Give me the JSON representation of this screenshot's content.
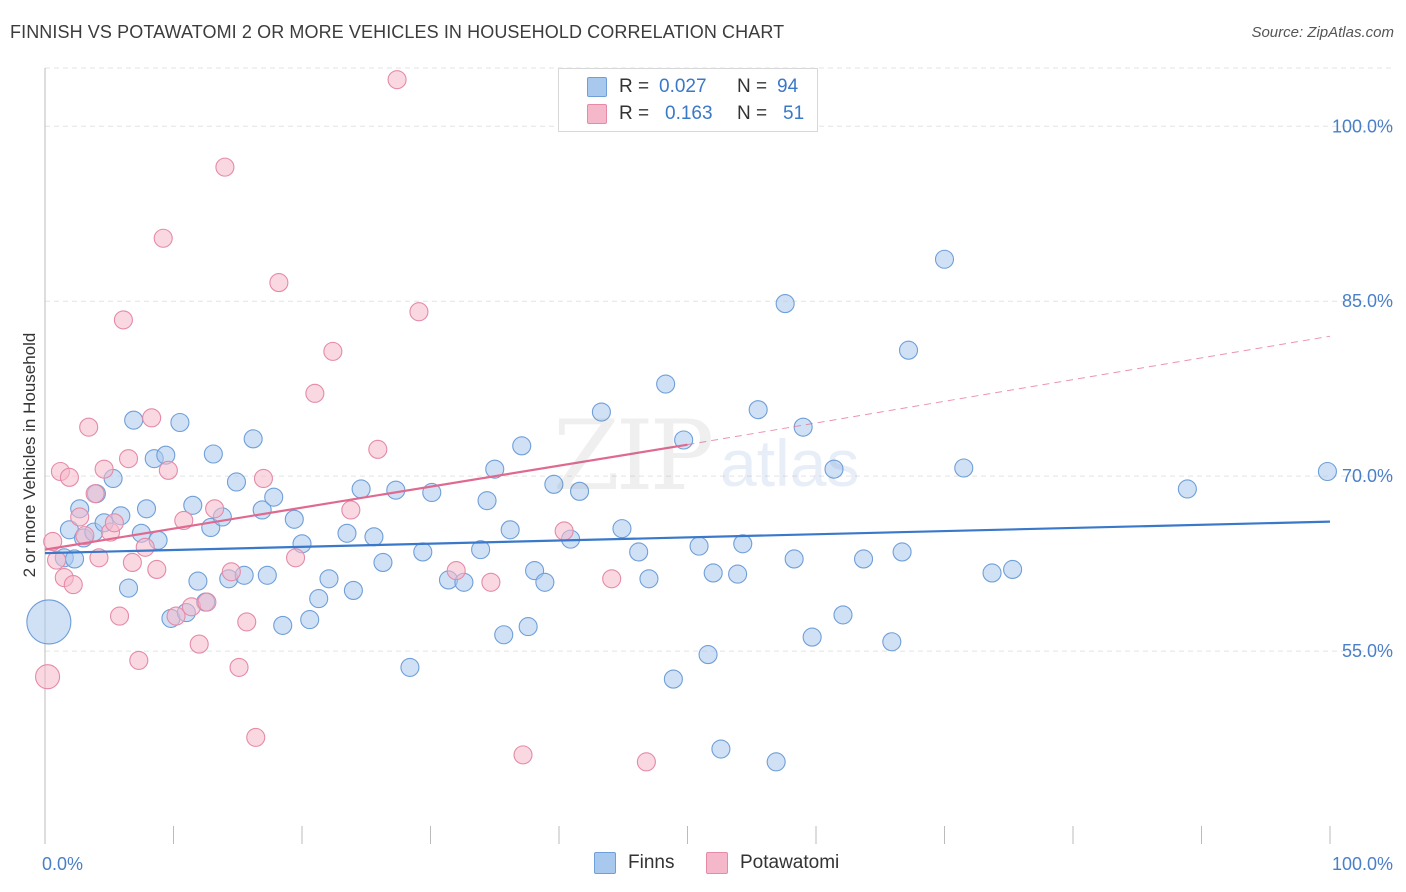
{
  "title": "FINNISH VS POTAWATOMI 2 OR MORE VEHICLES IN HOUSEHOLD CORRELATION CHART",
  "source": "Source: ZipAtlas.com",
  "watermark": {
    "zip": "ZIP",
    "atlas": "atlas"
  },
  "legend_top": [
    {
      "r_label": "R =",
      "r_value": "0.027",
      "n_label": "N =",
      "n_value": "94"
    },
    {
      "r_label": "R =",
      "r_value": "0.163",
      "n_label": "N =",
      "n_value": "51"
    }
  ],
  "colors": {
    "finns_fill": "#a9c8ee",
    "finns_stroke": "#6f9fd8",
    "finns_line": "#3a78c9",
    "pota_fill": "#f5b8cb",
    "pota_stroke": "#e58aa7",
    "pota_line": "#e0698f",
    "axis_text": "#4a7fc8",
    "grid": "#e3e3e3"
  },
  "chart_data": {
    "type": "scatter",
    "title": "FINNISH VS POTAWATOMI 2 OR MORE VEHICLES IN HOUSEHOLD CORRELATION CHART",
    "xlabel": "",
    "ylabel": "2 or more Vehicles in Household",
    "xlim": [
      0,
      100
    ],
    "ylim": [
      40,
      105
    ],
    "x_tick_labels": [
      "0.0%",
      "100.0%"
    ],
    "y_ticks": [
      55,
      70,
      85,
      100
    ],
    "y_tick_labels": [
      "55.0%",
      "70.0%",
      "85.0%",
      "100.0%"
    ],
    "legend": [
      "Finns",
      "Potawatomi"
    ],
    "series": [
      {
        "name": "Finns",
        "R": 0.027,
        "N": 94,
        "trend": {
          "x": [
            0,
            100
          ],
          "y": [
            63.4,
            66.1
          ]
        },
        "points": [
          [
            0.3,
            57.5,
            3
          ],
          [
            1.5,
            63.0,
            1
          ],
          [
            1.9,
            65.4,
            1
          ],
          [
            2.3,
            62.9,
            1
          ],
          [
            2.7,
            67.2,
            1
          ],
          [
            3.0,
            64.7,
            1
          ],
          [
            3.8,
            65.2,
            1
          ],
          [
            4.0,
            68.5,
            1
          ],
          [
            4.6,
            66.0,
            1
          ],
          [
            5.3,
            69.8,
            1
          ],
          [
            5.9,
            66.6,
            1
          ],
          [
            6.5,
            60.4,
            1
          ],
          [
            6.9,
            74.8,
            1
          ],
          [
            7.5,
            65.1,
            1
          ],
          [
            7.9,
            67.2,
            1
          ],
          [
            8.5,
            71.5,
            1
          ],
          [
            8.8,
            64.5,
            1
          ],
          [
            9.4,
            71.8,
            1
          ],
          [
            9.8,
            57.8,
            1
          ],
          [
            10.5,
            74.6,
            1
          ],
          [
            11.0,
            58.3,
            1
          ],
          [
            11.5,
            67.5,
            1
          ],
          [
            11.9,
            61.0,
            1
          ],
          [
            12.5,
            59.2,
            1
          ],
          [
            12.9,
            65.6,
            1
          ],
          [
            13.1,
            71.9,
            1
          ],
          [
            13.8,
            66.5,
            1
          ],
          [
            14.3,
            61.2,
            1
          ],
          [
            14.9,
            69.5,
            1
          ],
          [
            15.5,
            61.5,
            1
          ],
          [
            16.2,
            73.2,
            1
          ],
          [
            16.9,
            67.1,
            1
          ],
          [
            17.3,
            61.5,
            1
          ],
          [
            17.8,
            68.2,
            1
          ],
          [
            18.5,
            57.2,
            1
          ],
          [
            19.4,
            66.3,
            1
          ],
          [
            20.0,
            64.2,
            1
          ],
          [
            20.6,
            57.7,
            1
          ],
          [
            21.3,
            59.5,
            1
          ],
          [
            22.1,
            61.2,
            1
          ],
          [
            23.5,
            65.1,
            1
          ],
          [
            24.0,
            60.2,
            1
          ],
          [
            24.6,
            68.9,
            1
          ],
          [
            25.6,
            64.8,
            1
          ],
          [
            26.3,
            62.6,
            1
          ],
          [
            27.3,
            68.8,
            1
          ],
          [
            28.4,
            53.6,
            1
          ],
          [
            29.4,
            63.5,
            1
          ],
          [
            30.1,
            68.6,
            1
          ],
          [
            31.4,
            61.1,
            1
          ],
          [
            32.6,
            60.9,
            1
          ],
          [
            33.9,
            63.7,
            1
          ],
          [
            34.4,
            67.9,
            1
          ],
          [
            35.0,
            70.6,
            1
          ],
          [
            35.7,
            56.4,
            1
          ],
          [
            36.2,
            65.4,
            1
          ],
          [
            37.1,
            72.6,
            1
          ],
          [
            37.6,
            57.1,
            1
          ],
          [
            38.1,
            61.9,
            1
          ],
          [
            38.9,
            60.9,
            1
          ],
          [
            39.6,
            69.3,
            1
          ],
          [
            40.9,
            64.6,
            1
          ],
          [
            41.6,
            68.7,
            1
          ],
          [
            43.3,
            75.5,
            1
          ],
          [
            44.9,
            65.5,
            1
          ],
          [
            46.2,
            63.5,
            1
          ],
          [
            47.0,
            61.2,
            1
          ],
          [
            48.3,
            77.9,
            1
          ],
          [
            48.9,
            52.6,
            1
          ],
          [
            49.7,
            73.1,
            1
          ],
          [
            50.9,
            64.0,
            1
          ],
          [
            51.6,
            54.7,
            1
          ],
          [
            52.0,
            61.7,
            1
          ],
          [
            52.6,
            46.6,
            1
          ],
          [
            53.9,
            61.6,
            1
          ],
          [
            54.3,
            64.2,
            1
          ],
          [
            55.5,
            75.7,
            1
          ],
          [
            56.9,
            45.5,
            1
          ],
          [
            57.6,
            84.8,
            1
          ],
          [
            58.3,
            62.9,
            1
          ],
          [
            59.0,
            74.2,
            1
          ],
          [
            59.7,
            56.2,
            1
          ],
          [
            61.4,
            70.6,
            1
          ],
          [
            62.1,
            58.1,
            1
          ],
          [
            63.7,
            62.9,
            1
          ],
          [
            65.9,
            55.8,
            1
          ],
          [
            66.7,
            63.5,
            1
          ],
          [
            67.2,
            80.8,
            1
          ],
          [
            70.0,
            88.6,
            1
          ],
          [
            71.5,
            70.7,
            1
          ],
          [
            73.7,
            61.7,
            1
          ],
          [
            75.3,
            62.0,
            1
          ],
          [
            88.9,
            68.9,
            1
          ],
          [
            99.8,
            70.4,
            1
          ]
        ]
      },
      {
        "name": "Potawatomi",
        "R": 0.163,
        "N": 51,
        "trend": {
          "x": [
            0,
            50
          ],
          "y": [
            63.7,
            72.7
          ]
        },
        "trend_extension": {
          "x": [
            50,
            100
          ],
          "y": [
            72.7,
            82.0
          ]
        },
        "points": [
          [
            0.2,
            52.8,
            2
          ],
          [
            0.6,
            64.4,
            1
          ],
          [
            0.9,
            62.8,
            1
          ],
          [
            1.2,
            70.4,
            1
          ],
          [
            1.5,
            61.3,
            1
          ],
          [
            1.9,
            69.9,
            1
          ],
          [
            2.2,
            60.7,
            1
          ],
          [
            2.7,
            66.5,
            1
          ],
          [
            3.1,
            64.9,
            1
          ],
          [
            3.4,
            74.2,
            1
          ],
          [
            3.9,
            68.5,
            1
          ],
          [
            4.2,
            63.0,
            1
          ],
          [
            4.6,
            70.6,
            1
          ],
          [
            5.1,
            65.2,
            1
          ],
          [
            5.4,
            66.0,
            1
          ],
          [
            5.8,
            58.0,
            1
          ],
          [
            6.1,
            83.4,
            1
          ],
          [
            6.5,
            71.5,
            1
          ],
          [
            6.8,
            62.6,
            1
          ],
          [
            7.3,
            54.2,
            1
          ],
          [
            7.8,
            63.9,
            1
          ],
          [
            8.3,
            75.0,
            1
          ],
          [
            8.7,
            62.0,
            1
          ],
          [
            9.2,
            90.4,
            1
          ],
          [
            9.6,
            70.5,
            1
          ],
          [
            10.2,
            58.0,
            1
          ],
          [
            10.8,
            66.2,
            1
          ],
          [
            11.4,
            58.8,
            1
          ],
          [
            12.0,
            55.6,
            1
          ],
          [
            12.6,
            59.2,
            1
          ],
          [
            13.2,
            67.2,
            1
          ],
          [
            14.0,
            96.5,
            1
          ],
          [
            14.5,
            61.8,
            1
          ],
          [
            15.1,
            53.6,
            1
          ],
          [
            15.7,
            57.5,
            1
          ],
          [
            16.4,
            47.6,
            1
          ],
          [
            17.0,
            69.8,
            1
          ],
          [
            18.2,
            86.6,
            1
          ],
          [
            19.5,
            63.0,
            1
          ],
          [
            21.0,
            77.1,
            1
          ],
          [
            22.4,
            80.7,
            1
          ],
          [
            23.8,
            67.1,
            1
          ],
          [
            25.9,
            72.3,
            1
          ],
          [
            27.4,
            104.0,
            1
          ],
          [
            29.1,
            84.1,
            1
          ],
          [
            32.0,
            61.9,
            1
          ],
          [
            34.7,
            60.9,
            1
          ],
          [
            37.2,
            46.1,
            1
          ],
          [
            40.4,
            65.3,
            1
          ],
          [
            44.1,
            61.2,
            1
          ],
          [
            46.8,
            45.5,
            1
          ]
        ]
      }
    ]
  },
  "bottom_legend": [
    {
      "label": "Finns"
    },
    {
      "label": "Potawatomi"
    }
  ]
}
